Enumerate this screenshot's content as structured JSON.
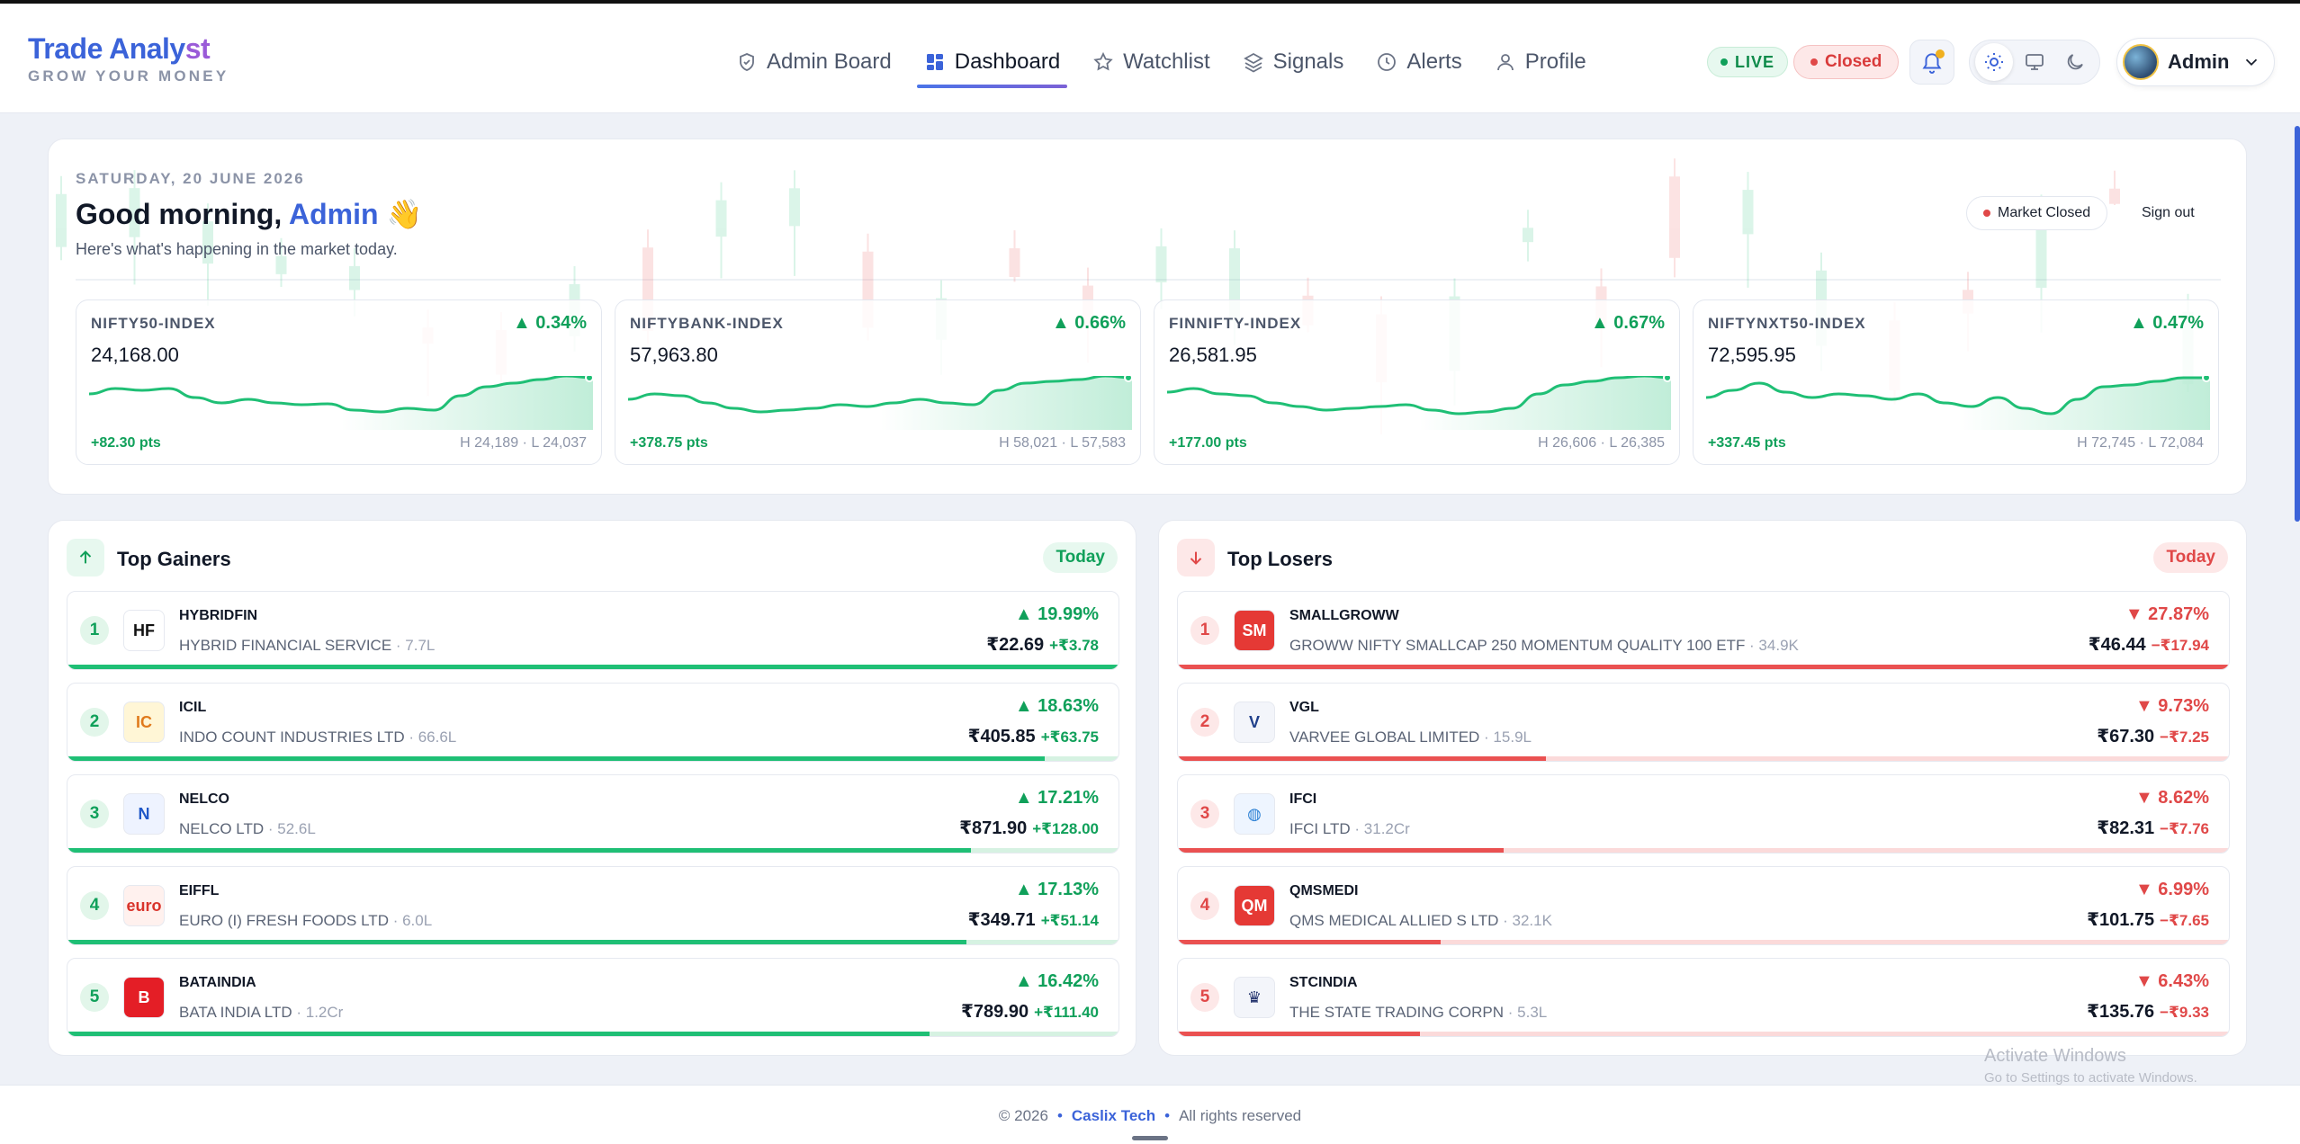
{
  "brand": {
    "title_main": "Trade Analy",
    "title_accent": "st",
    "subtitle": "GROW YOUR MONEY"
  },
  "nav": [
    {
      "label": "Admin Board",
      "icon": "shield-icon",
      "active": false
    },
    {
      "label": "Dashboard",
      "icon": "grid-icon",
      "active": true
    },
    {
      "label": "Watchlist",
      "icon": "star-icon",
      "active": false
    },
    {
      "label": "Signals",
      "icon": "layers-icon",
      "active": false
    },
    {
      "label": "Alerts",
      "icon": "clock-icon",
      "active": false
    },
    {
      "label": "Profile",
      "icon": "user-icon",
      "active": false
    }
  ],
  "status": {
    "live": "LIVE",
    "closed": "Closed"
  },
  "user": {
    "name": "Admin"
  },
  "hero": {
    "date": "SATURDAY, 20 JUNE 2026",
    "greeting": "Good morning, ",
    "greeting_name": "Admin",
    "greeting_emoji": "👋",
    "subtitle": "Here's what's happening in the market today.",
    "market_status": "Market Closed",
    "signout": "Sign out"
  },
  "indices": [
    {
      "name": "NIFTY50-INDEX",
      "change": "▲ 0.34%",
      "value": "24,168.00",
      "pts": "+82.30 pts",
      "hl": "H 24,189 · L 24,037",
      "spark": [
        40,
        46,
        44,
        46,
        36,
        30,
        34,
        30,
        28,
        29,
        22,
        20,
        24,
        22,
        38,
        48,
        52,
        56,
        60,
        58
      ]
    },
    {
      "name": "NIFTYBANK-INDEX",
      "change": "▲ 0.66%",
      "value": "57,963.80",
      "pts": "+378.75 pts",
      "hl": "H 58,021 · L 57,583",
      "spark": [
        34,
        40,
        38,
        30,
        24,
        20,
        22,
        24,
        28,
        26,
        30,
        34,
        30,
        28,
        44,
        52,
        54,
        56,
        60,
        58
      ]
    },
    {
      "name": "FINNIFTY-INDEX",
      "change": "▲ 0.67%",
      "value": "26,581.95",
      "pts": "+177.00 pts",
      "hl": "H 26,606 · L 26,385",
      "spark": [
        42,
        46,
        40,
        38,
        30,
        26,
        22,
        24,
        26,
        28,
        22,
        18,
        20,
        24,
        40,
        50,
        54,
        58,
        60,
        58
      ]
    },
    {
      "name": "NIFTYNXT50-INDEX",
      "change": "▲ 0.47%",
      "value": "72,595.95",
      "pts": "+337.45 pts",
      "hl": "H 72,745 · L 72,084",
      "spark": [
        36,
        44,
        52,
        42,
        36,
        40,
        38,
        34,
        40,
        30,
        26,
        36,
        24,
        18,
        34,
        48,
        50,
        54,
        58,
        58
      ]
    }
  ],
  "gainers": {
    "title": "Top Gainers",
    "tag": "Today",
    "rows": [
      {
        "rank": "1",
        "symbol": "HYBRIDFIN",
        "name": "HYBRID FINANCIAL SERVICE",
        "vol": " · 7.7L",
        "pct": "▲ 19.99%",
        "price": "₹22.69",
        "chg": "+₹3.78",
        "fill": 1.0,
        "logo": "HF",
        "logo_bg": "#ffffff",
        "logo_fg": "#111111"
      },
      {
        "rank": "2",
        "symbol": "ICIL",
        "name": "INDO COUNT INDUSTRIES LTD",
        "vol": " · 66.6L",
        "pct": "▲ 18.63%",
        "price": "₹405.85",
        "chg": "+₹63.75",
        "fill": 0.93,
        "logo": "IC",
        "logo_bg": "#fff6d6",
        "logo_fg": "#e07a1c"
      },
      {
        "rank": "3",
        "symbol": "NELCO",
        "name": "NELCO LTD",
        "vol": " · 52.6L",
        "pct": "▲ 17.21%",
        "price": "₹871.90",
        "chg": "+₹128.00",
        "fill": 0.86,
        "logo": "N",
        "logo_bg": "#eef3ff",
        "logo_fg": "#1f57c8"
      },
      {
        "rank": "4",
        "symbol": "EIFFL",
        "name": "EURO (I) FRESH FOODS LTD",
        "vol": " · 6.0L",
        "pct": "▲ 17.13%",
        "price": "₹349.71",
        "chg": "+₹51.14",
        "fill": 0.855,
        "logo": "euro",
        "logo_bg": "#fff1ee",
        "logo_fg": "#d9342b"
      },
      {
        "rank": "5",
        "symbol": "BATAINDIA",
        "name": "BATA INDIA LTD",
        "vol": " · 1.2Cr",
        "pct": "▲ 16.42%",
        "price": "₹789.90",
        "chg": "+₹111.40",
        "fill": 0.82,
        "logo": "B",
        "logo_bg": "#e41e26",
        "logo_fg": "#ffffff"
      }
    ]
  },
  "losers": {
    "title": "Top Losers",
    "tag": "Today",
    "rows": [
      {
        "rank": "1",
        "symbol": "SMALLGROWW",
        "name": "GROWW NIFTY SMALLCAP 250 MOMENTUM QUALITY 100 ETF",
        "vol": " · 34.9K",
        "pct": "▼ 27.87%",
        "price": "₹46.44",
        "chg": "−₹17.94",
        "fill": 1.0,
        "logo": "SM",
        "logo_bg": "#e53935",
        "logo_fg": "#ffffff"
      },
      {
        "rank": "2",
        "symbol": "VGL",
        "name": "VARVEE GLOBAL LIMITED",
        "vol": " · 15.9L",
        "pct": "▼ 9.73%",
        "price": "₹67.30",
        "chg": "−₹7.25",
        "fill": 0.35,
        "logo": "V",
        "logo_bg": "#f3f5fa",
        "logo_fg": "#1f3f8a"
      },
      {
        "rank": "3",
        "symbol": "IFCI",
        "name": "IFCI LTD",
        "vol": " · 31.2Cr",
        "pct": "▼ 8.62%",
        "price": "₹82.31",
        "chg": "−₹7.76",
        "fill": 0.31,
        "logo": "◍",
        "logo_bg": "#eef5ff",
        "logo_fg": "#2a7fd4"
      },
      {
        "rank": "4",
        "symbol": "QMSMEDI",
        "name": "QMS MEDICAL ALLIED S LTD",
        "vol": " · 32.1K",
        "pct": "▼ 6.99%",
        "price": "₹101.75",
        "chg": "−₹7.65",
        "fill": 0.25,
        "logo": "QM",
        "logo_bg": "#e53935",
        "logo_fg": "#ffffff"
      },
      {
        "rank": "5",
        "symbol": "STCINDIA",
        "name": "THE STATE TRADING CORPN",
        "vol": " · 5.3L",
        "pct": "▼ 6.43%",
        "price": "₹135.76",
        "chg": "−₹9.33",
        "fill": 0.23,
        "logo": "♛",
        "logo_bg": "#f3f5fa",
        "logo_fg": "#1f2f6a"
      }
    ]
  },
  "footer": {
    "copyright": "© 2026",
    "company": "Caslix Tech",
    "rights": "All rights reserved"
  },
  "watermark": {
    "line1": "Activate Windows",
    "line2": "Go to Settings to activate Windows."
  },
  "colors": {
    "accent": "#3b63d9",
    "up": "#10a05a",
    "down": "#e04848"
  }
}
